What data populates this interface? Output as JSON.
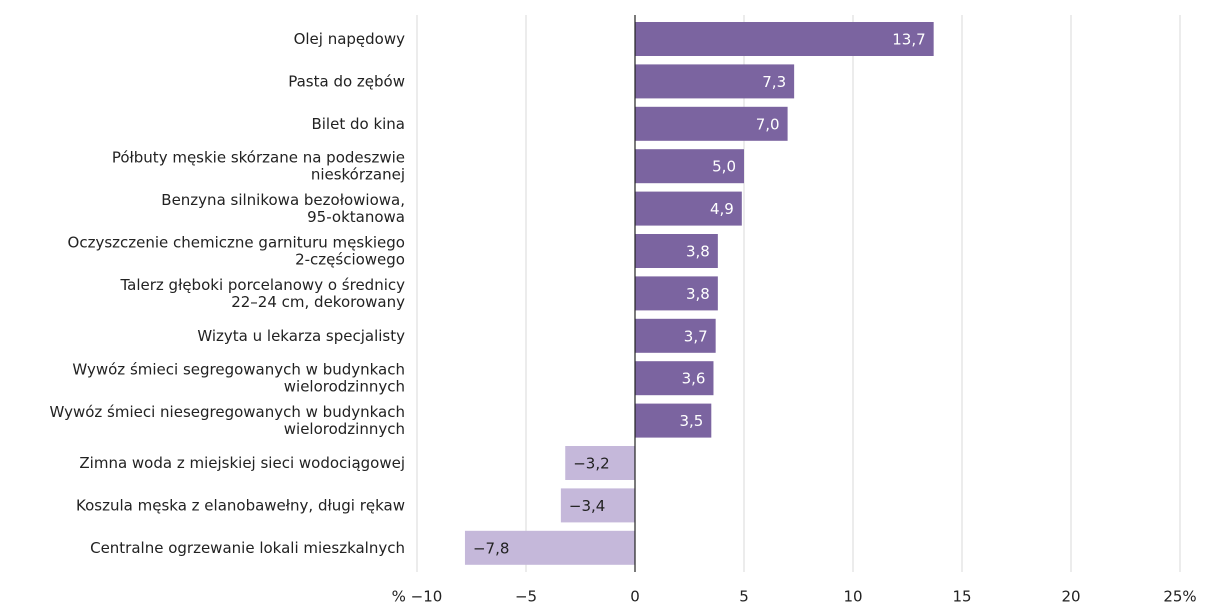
{
  "chart_data": {
    "type": "barh",
    "categories": [
      "Olej napędowy",
      "Pasta do zębów",
      "Bilet do kina",
      "Półbuty męskie skórzane na podeszwie\nnieskórzanej",
      "Benzyna silnikowa bezołowiowa,\n95-oktanowa",
      "Oczyszczenie chemiczne garnituru męskiego\n2-częściowego",
      "Talerz głęboki porcelanowy o średnicy\n22–24 cm, dekorowany",
      "Wizyta u lekarza specjalisty",
      "Wywóz śmieci segregowanych w budynkach\nwielorodzinnych",
      "Wywóz śmieci niesegregowanych w budynkach\nwielorodzinnych",
      "Zimna woda z miejskiej sieci wodociągowej",
      "Koszula męska z elanobawełny, długi rękaw",
      "Centralne ogrzewanie lokali mieszkalnych"
    ],
    "values": [
      13.7,
      7.3,
      7.0,
      5.0,
      4.9,
      3.8,
      3.8,
      3.7,
      3.6,
      3.5,
      -3.2,
      -3.4,
      -7.8
    ],
    "value_labels": [
      "13,7",
      "7,3",
      "7,0",
      "5,0",
      "4,9",
      "3,8",
      "3,8",
      "3,7",
      "3,6",
      "3,5",
      "−3,2",
      "−3,4",
      "−7,8"
    ],
    "color": "#7b64a0",
    "negative_color": "#c5b8da",
    "xlim": [
      -10,
      25
    ],
    "xticks": [
      {
        "value": -10,
        "label": "% −10"
      },
      {
        "value": -5,
        "label": "−5"
      },
      0,
      5,
      10,
      15,
      20,
      {
        "value": 25,
        "label": "25%"
      }
    ],
    "grid": true
  }
}
